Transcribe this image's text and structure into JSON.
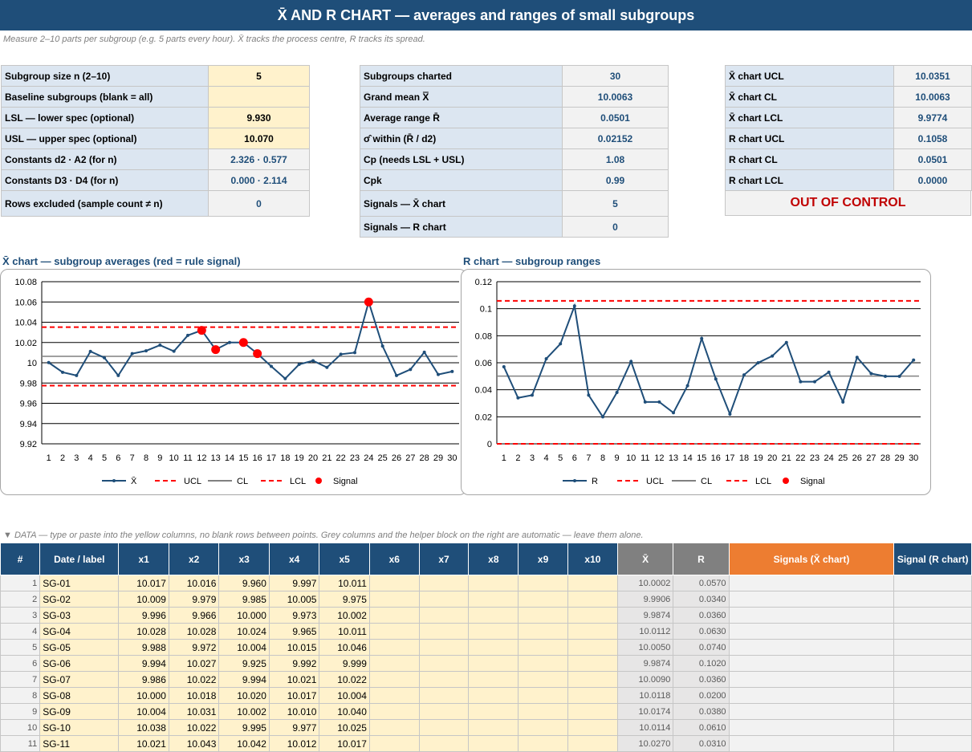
{
  "title": "X̄ AND R CHART  —  averages and ranges of small subgroups",
  "subtitle": "Measure 2–10 parts per subgroup (e.g. 5 parts every hour). X̄ tracks the process centre, R tracks its spread.",
  "inputs": [
    {
      "label": "Subgroup size n (2–10)",
      "value": "5",
      "style": "inp"
    },
    {
      "label": "Baseline subgroups (blank = all)",
      "value": "",
      "style": "inp"
    },
    {
      "label": "LSL — lower spec (optional)",
      "value": "9.930",
      "style": "inp"
    },
    {
      "label": "USL — upper spec (optional)",
      "value": "10.070",
      "style": "inp"
    },
    {
      "label": "Constants  d2 · A2  (for n)",
      "value": "2.326  ·  0.577",
      "style": "out"
    },
    {
      "label": "Constants  D3 · D4  (for n)",
      "value": "0.000  ·  2.114",
      "style": "out"
    },
    {
      "label": "Rows excluded (sample count ≠ n)",
      "value": "0",
      "style": "out"
    }
  ],
  "stats": [
    {
      "label": "Subgroups charted",
      "value": "30"
    },
    {
      "label": "Grand mean X̿",
      "value": "10.0063"
    },
    {
      "label": "Average range R̄",
      "value": "0.0501"
    },
    {
      "label": "σ̂ within  (R̄ / d2)",
      "value": "0.02152"
    },
    {
      "label": "Cp  (needs LSL + USL)",
      "value": "1.08"
    },
    {
      "label": "Cpk",
      "value": "0.99"
    },
    {
      "label": "Signals — X̄ chart",
      "value": "5"
    },
    {
      "label": "Signals — R chart",
      "value": "0"
    }
  ],
  "limits": [
    {
      "label": "X̄ chart UCL",
      "value": "10.0351"
    },
    {
      "label": "X̄ chart CL",
      "value": "10.0063"
    },
    {
      "label": "X̄ chart LCL",
      "value": "9.9774"
    },
    {
      "label": "R chart UCL",
      "value": "0.1058"
    },
    {
      "label": "R chart CL",
      "value": "0.0501"
    },
    {
      "label": "R chart LCL",
      "value": "0.0000"
    }
  ],
  "status": "OUT OF CONTROL",
  "data_note": "▼ DATA — type or paste into the yellow columns, no blank rows between points. Grey columns and the helper block on the right are automatic — leave them alone.",
  "columns": [
    "#",
    "Date / label",
    "x1",
    "x2",
    "x3",
    "x4",
    "x5",
    "x6",
    "x7",
    "x8",
    "x9",
    "x10",
    "X̄",
    "R",
    "Signals (X̄ chart)",
    "Signal (R chart)"
  ],
  "rows": [
    {
      "n": "1",
      "label": "SG-01",
      "x": [
        "10.017",
        "10.016",
        "9.960",
        "9.997",
        "10.011"
      ],
      "xbar": "10.0002",
      "r": "0.0570"
    },
    {
      "n": "2",
      "label": "SG-02",
      "x": [
        "10.009",
        "9.979",
        "9.985",
        "10.005",
        "9.975"
      ],
      "xbar": "9.9906",
      "r": "0.0340"
    },
    {
      "n": "3",
      "label": "SG-03",
      "x": [
        "9.996",
        "9.966",
        "10.000",
        "9.973",
        "10.002"
      ],
      "xbar": "9.9874",
      "r": "0.0360"
    },
    {
      "n": "4",
      "label": "SG-04",
      "x": [
        "10.028",
        "10.028",
        "10.024",
        "9.965",
        "10.011"
      ],
      "xbar": "10.0112",
      "r": "0.0630"
    },
    {
      "n": "5",
      "label": "SG-05",
      "x": [
        "9.988",
        "9.972",
        "10.004",
        "10.015",
        "10.046"
      ],
      "xbar": "10.0050",
      "r": "0.0740"
    },
    {
      "n": "6",
      "label": "SG-06",
      "x": [
        "9.994",
        "10.027",
        "9.925",
        "9.992",
        "9.999"
      ],
      "xbar": "9.9874",
      "r": "0.1020"
    },
    {
      "n": "7",
      "label": "SG-07",
      "x": [
        "9.986",
        "10.022",
        "9.994",
        "10.021",
        "10.022"
      ],
      "xbar": "10.0090",
      "r": "0.0360"
    },
    {
      "n": "8",
      "label": "SG-08",
      "x": [
        "10.000",
        "10.018",
        "10.020",
        "10.017",
        "10.004"
      ],
      "xbar": "10.0118",
      "r": "0.0200"
    },
    {
      "n": "9",
      "label": "SG-09",
      "x": [
        "10.004",
        "10.031",
        "10.002",
        "10.010",
        "10.040"
      ],
      "xbar": "10.0174",
      "r": "0.0380"
    },
    {
      "n": "10",
      "label": "SG-10",
      "x": [
        "10.038",
        "10.022",
        "9.995",
        "9.977",
        "10.025"
      ],
      "xbar": "10.0114",
      "r": "0.0610"
    },
    {
      "n": "11",
      "label": "SG-11",
      "x": [
        "10.021",
        "10.043",
        "10.042",
        "10.012",
        "10.017"
      ],
      "xbar": "10.0270",
      "r": "0.0310"
    }
  ],
  "chart_data": [
    {
      "type": "line",
      "title": "X̄ chart — subgroup averages (red = rule signal)",
      "x": [
        1,
        2,
        3,
        4,
        5,
        6,
        7,
        8,
        9,
        10,
        11,
        12,
        13,
        14,
        15,
        16,
        17,
        18,
        19,
        20,
        21,
        22,
        23,
        24,
        25,
        26,
        27,
        28,
        29,
        30
      ],
      "series": [
        {
          "name": "X̄",
          "color": "#1f4e79",
          "values": [
            10.0002,
            9.9906,
            9.9874,
            10.0112,
            10.005,
            9.9874,
            10.009,
            10.0118,
            10.0174,
            10.0114,
            10.027,
            10.032,
            10.013,
            10.02,
            10.02,
            10.009,
            9.9964,
            9.9844,
            9.9984,
            10.002,
            9.9954,
            10.0084,
            10.01,
            10.06,
            10.0164,
            9.9874,
            9.9934,
            10.0104,
            9.9884,
            9.9914
          ]
        },
        {
          "name": "UCL",
          "color": "#ff0000",
          "value": 10.0351,
          "style": "dashed"
        },
        {
          "name": "CL",
          "color": "#808080",
          "value": 10.0063,
          "style": "solid"
        },
        {
          "name": "LCL",
          "color": "#ff0000",
          "value": 9.9774,
          "style": "dashed"
        },
        {
          "name": "Signal",
          "color": "#ff0000",
          "points": [
            [
              12,
              10.032
            ],
            [
              13,
              10.013
            ],
            [
              15,
              10.02
            ],
            [
              16,
              10.009
            ],
            [
              24,
              10.06
            ]
          ]
        }
      ],
      "ylim": [
        9.92,
        10.08
      ],
      "yticks": [
        "10.08",
        "10.06",
        "10.04",
        "10.02",
        "10",
        "9.98",
        "9.96",
        "9.94",
        "9.92"
      ],
      "legend": "bottom"
    },
    {
      "type": "line",
      "title": "R chart — subgroup ranges",
      "x": [
        1,
        2,
        3,
        4,
        5,
        6,
        7,
        8,
        9,
        10,
        11,
        12,
        13,
        14,
        15,
        16,
        17,
        18,
        19,
        20,
        21,
        22,
        23,
        24,
        25,
        26,
        27,
        28,
        29,
        30
      ],
      "series": [
        {
          "name": "R",
          "color": "#1f4e79",
          "values": [
            0.057,
            0.034,
            0.036,
            0.063,
            0.074,
            0.102,
            0.036,
            0.02,
            0.038,
            0.061,
            0.031,
            0.031,
            0.023,
            0.043,
            0.078,
            0.048,
            0.022,
            0.051,
            0.06,
            0.065,
            0.075,
            0.046,
            0.046,
            0.053,
            0.031,
            0.064,
            0.052,
            0.05,
            0.05,
            0.062
          ]
        },
        {
          "name": "UCL",
          "color": "#ff0000",
          "value": 0.1058,
          "style": "dashed"
        },
        {
          "name": "CL",
          "color": "#808080",
          "value": 0.0501,
          "style": "solid"
        },
        {
          "name": "LCL",
          "color": "#ff0000",
          "value": 0.0,
          "style": "dashed"
        },
        {
          "name": "Signal",
          "color": "#ff0000",
          "points": []
        }
      ],
      "ylim": [
        0,
        0.12
      ],
      "yticks": [
        "0.12",
        "0.1",
        "0.08",
        "0.06",
        "0.04",
        "0.02",
        "0"
      ],
      "legend": "bottom"
    }
  ]
}
